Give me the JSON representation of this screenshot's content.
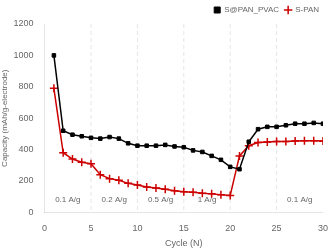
{
  "chart_data": {
    "type": "line",
    "xlabel": "Cycle (N)",
    "ylabel": "Capacity (mAh/g-electrode)",
    "xlim": [
      0,
      30
    ],
    "ylim": [
      0,
      1200
    ],
    "xticks": [
      0,
      5,
      10,
      15,
      20,
      25,
      30
    ],
    "yticks": [
      0,
      200,
      400,
      600,
      800,
      1000,
      1200
    ],
    "grid": false,
    "legend": "upper right",
    "vlines": [
      5,
      10,
      15,
      20,
      25
    ],
    "annotations": [
      {
        "x": 2.5,
        "y": 55,
        "text": "0.1 A/g"
      },
      {
        "x": 7.5,
        "y": 55,
        "text": "0.2 A/g"
      },
      {
        "x": 12.5,
        "y": 55,
        "text": "0.5 A/g"
      },
      {
        "x": 17.5,
        "y": 55,
        "text": "1 A/g"
      },
      {
        "x": 27.5,
        "y": 55,
        "text": "0.1 A/g"
      }
    ],
    "series": [
      {
        "name": "S@PAN_PVAC",
        "color": "#000000",
        "marker": "square",
        "x": [
          1,
          2,
          3,
          4,
          5,
          6,
          7,
          8,
          9,
          10,
          11,
          12,
          13,
          14,
          15,
          16,
          17,
          18,
          19,
          20,
          21,
          22,
          23,
          24,
          25,
          26,
          27,
          28,
          29,
          30
        ],
        "values": [
          1000,
          520,
          495,
          485,
          475,
          470,
          480,
          470,
          440,
          425,
          425,
          425,
          430,
          420,
          415,
          395,
          385,
          360,
          335,
          290,
          275,
          450,
          530,
          545,
          545,
          555,
          565,
          565,
          570,
          565
        ]
      },
      {
        "name": "S-PAN",
        "color": "#cc0000",
        "marker": "plus",
        "x": [
          1,
          2,
          3,
          4,
          5,
          6,
          7,
          8,
          9,
          10,
          11,
          12,
          13,
          14,
          15,
          16,
          17,
          18,
          19,
          20,
          21,
          22,
          23,
          24,
          25,
          26,
          27,
          28,
          29,
          30
        ],
        "values": [
          790,
          380,
          340,
          320,
          310,
          240,
          215,
          205,
          185,
          175,
          162,
          155,
          148,
          138,
          132,
          128,
          122,
          118,
          112,
          108,
          360,
          425,
          445,
          448,
          452,
          452,
          455,
          456,
          456,
          455
        ]
      }
    ]
  }
}
